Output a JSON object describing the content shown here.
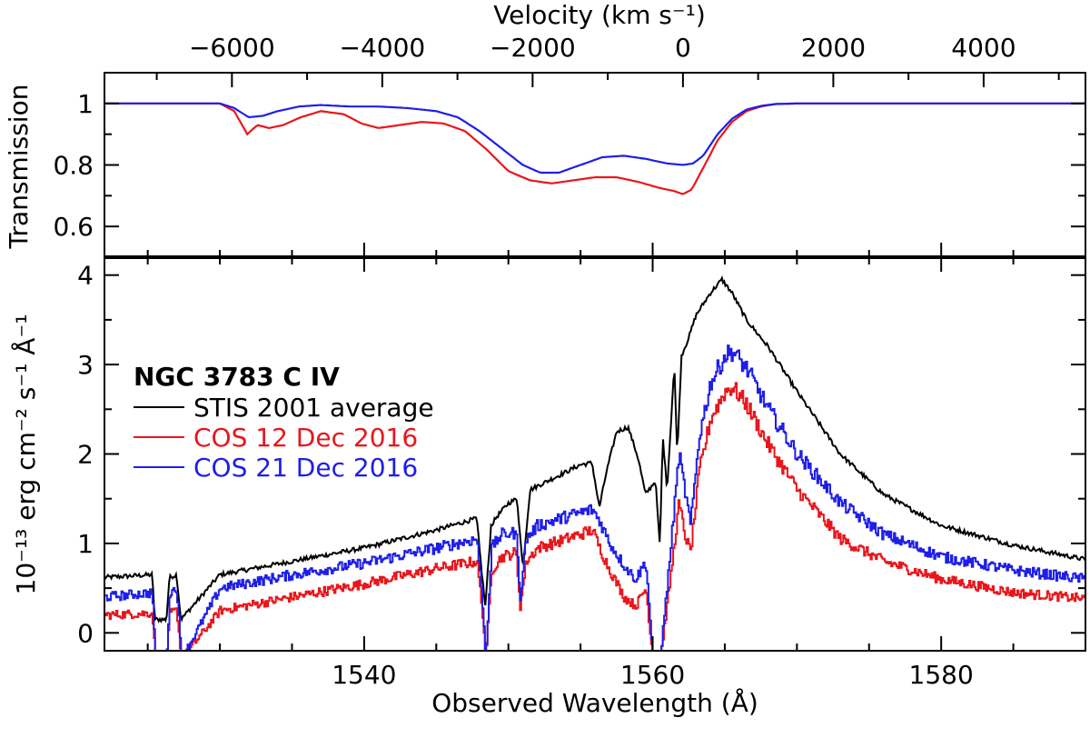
{
  "chart_data": [
    {
      "type": "line",
      "panel": "top",
      "ylabel": "Transmission",
      "top_axis_label": "Velocity (km s⁻¹)",
      "xlim": [
        1522,
        1590
      ],
      "ylim": [
        0.5,
        1.1
      ],
      "y_ticks": [
        0.6,
        0.8,
        1.0
      ],
      "y_tick_labels": [
        "0.6",
        "0.8",
        "1"
      ],
      "top_axis_ticks": [
        -6000,
        -4000,
        -2000,
        0,
        2000,
        4000
      ],
      "top_axis_tick_labels": [
        "−6000",
        "−4000",
        "−2000",
        "0",
        "2000",
        "4000"
      ],
      "velocity_zero_wavelength": 1562.1,
      "series": [
        {
          "name": "COS 12 Dec 2016",
          "color": "#e8161c",
          "x": [
            1522,
            1530,
            1531,
            1531.9,
            1532.6,
            1533.4,
            1534.4,
            1535.6,
            1537,
            1538.6,
            1539.8,
            1541,
            1542.5,
            1544,
            1545.5,
            1547,
            1548.5,
            1550,
            1551.5,
            1553,
            1554.5,
            1556,
            1557.5,
            1559,
            1560.5,
            1561.5,
            1562.1,
            1562.7,
            1563.5,
            1564.5,
            1565.5,
            1566.5,
            1567.5,
            1568.5,
            1570,
            1590
          ],
          "y": [
            1.0,
            1.0,
            0.975,
            0.9,
            0.93,
            0.92,
            0.93,
            0.955,
            0.975,
            0.965,
            0.935,
            0.92,
            0.93,
            0.94,
            0.935,
            0.91,
            0.85,
            0.78,
            0.75,
            0.74,
            0.75,
            0.76,
            0.76,
            0.745,
            0.725,
            0.715,
            0.705,
            0.72,
            0.79,
            0.88,
            0.94,
            0.975,
            0.99,
            0.998,
            1.0,
            1.0
          ]
        },
        {
          "name": "COS 21 Dec 2016",
          "color": "#1e1ee8",
          "x": [
            1522,
            1530,
            1531,
            1532,
            1533,
            1534,
            1535.5,
            1537,
            1539,
            1541,
            1543,
            1545,
            1546.5,
            1548,
            1549.5,
            1551,
            1552.2,
            1553.5,
            1555,
            1556.5,
            1558,
            1559.5,
            1561,
            1562.1,
            1562.8,
            1563.5,
            1564.5,
            1565.5,
            1566.5,
            1567.5,
            1568.5,
            1570,
            1590
          ],
          "y": [
            1.0,
            1.0,
            0.985,
            0.955,
            0.96,
            0.975,
            0.99,
            0.995,
            0.99,
            0.99,
            0.985,
            0.975,
            0.955,
            0.91,
            0.855,
            0.8,
            0.775,
            0.775,
            0.8,
            0.825,
            0.83,
            0.82,
            0.805,
            0.8,
            0.805,
            0.83,
            0.9,
            0.95,
            0.98,
            0.992,
            0.998,
            1.0,
            1.0
          ]
        }
      ]
    },
    {
      "type": "line",
      "panel": "bottom",
      "xlabel": "Observed Wavelength (Å)",
      "ylabel": "10⁻¹³ erg cm⁻² s⁻¹ Å⁻¹",
      "xlim": [
        1522,
        1590
      ],
      "ylim": [
        -0.2,
        4.2
      ],
      "x_ticks": [
        1540,
        1560,
        1580
      ],
      "x_tick_labels": [
        "1540",
        "1560",
        "1580"
      ],
      "y_ticks": [
        0,
        1,
        2,
        3,
        4
      ],
      "y_tick_labels": [
        "0",
        "1",
        "2",
        "3",
        "4"
      ],
      "legend": {
        "title": "NGC 3783 C IV",
        "entries": [
          {
            "label": "STIS 2001 average",
            "color": "#000000"
          },
          {
            "label": "COS 12 Dec 2016",
            "color": "#e8161c"
          },
          {
            "label": "COS 21 Dec 2016",
            "color": "#1e1ee8"
          }
        ]
      },
      "series": [
        {
          "name": "STIS 2001 average",
          "color": "#000000",
          "x": [
            1522,
            1525.3,
            1525.5,
            1526.3,
            1526.5,
            1527,
            1527.3,
            1530,
            1535,
            1540,
            1545,
            1547.8,
            1548.2,
            1548.4,
            1548.8,
            1549.2,
            1550,
            1550.6,
            1551,
            1551.5,
            1553,
            1555,
            1555.8,
            1556.3,
            1556.8,
            1557.5,
            1558.3,
            1559,
            1559.5,
            1560.2,
            1560.5,
            1560.7,
            1561,
            1561.5,
            1561.7,
            1562,
            1562.5,
            1563,
            1564,
            1564.8,
            1565.5,
            1566.5,
            1568,
            1570,
            1573,
            1576,
            1580,
            1585,
            1590
          ],
          "y": [
            0.62,
            0.65,
            0.15,
            0.15,
            0.62,
            0.65,
            0.15,
            0.65,
            0.8,
            0.95,
            1.15,
            1.28,
            0.6,
            0.3,
            1.2,
            1.3,
            1.45,
            1.5,
            0.72,
            1.6,
            1.72,
            1.88,
            1.9,
            1.4,
            1.8,
            2.25,
            2.3,
            1.95,
            1.55,
            1.7,
            0.95,
            2.2,
            1.6,
            3.0,
            2.0,
            3.1,
            3.3,
            3.55,
            3.8,
            3.95,
            3.8,
            3.5,
            3.2,
            2.7,
            2.0,
            1.55,
            1.2,
            0.98,
            0.82
          ]
        },
        {
          "name": "COS 12 Dec 2016",
          "color": "#e8161c",
          "x": [
            1522,
            1525.3,
            1525.5,
            1526.3,
            1526.5,
            1527,
            1527.3,
            1530,
            1535,
            1540,
            1545,
            1547.8,
            1548.2,
            1548.4,
            1548.8,
            1549.5,
            1550.5,
            1550.8,
            1551.2,
            1552,
            1554,
            1555.8,
            1556.3,
            1557,
            1558,
            1558.8,
            1559.5,
            1560,
            1560.5,
            1561.2,
            1561.8,
            1562.2,
            1562.6,
            1563.2,
            1564,
            1565,
            1565.5,
            1566.5,
            1568,
            1570,
            1573,
            1576,
            1580,
            1585,
            1590
          ],
          "y": [
            0.2,
            0.22,
            -0.3,
            -0.3,
            0.22,
            0.25,
            -0.3,
            0.25,
            0.4,
            0.55,
            0.72,
            0.8,
            0.2,
            -0.3,
            0.7,
            0.85,
            0.9,
            0.3,
            0.8,
            0.95,
            1.05,
            1.15,
            0.95,
            0.7,
            0.4,
            0.3,
            0.5,
            -0.3,
            -0.3,
            0.6,
            1.45,
            1.1,
            0.9,
            1.8,
            2.4,
            2.7,
            2.75,
            2.55,
            2.1,
            1.6,
            1.05,
            0.8,
            0.6,
            0.45,
            0.38
          ]
        },
        {
          "name": "COS 21 Dec 2016",
          "color": "#1e1ee8",
          "x": [
            1522,
            1525.3,
            1525.5,
            1526.3,
            1526.5,
            1527,
            1527.3,
            1530,
            1535,
            1540,
            1545,
            1547.8,
            1548.2,
            1548.4,
            1548.8,
            1549.5,
            1550.5,
            1550.8,
            1551.2,
            1552,
            1554,
            1555.8,
            1556.3,
            1557,
            1558,
            1558.8,
            1559.5,
            1560,
            1560.5,
            1561.2,
            1561.8,
            1562.2,
            1562.6,
            1563.2,
            1564,
            1565,
            1565.5,
            1566.5,
            1568,
            1570,
            1573,
            1576,
            1580,
            1585,
            1590
          ],
          "y": [
            0.4,
            0.45,
            -0.3,
            -0.3,
            0.45,
            0.5,
            -0.3,
            0.5,
            0.65,
            0.78,
            0.95,
            1.05,
            0.3,
            -0.3,
            0.95,
            1.1,
            1.12,
            0.4,
            1.05,
            1.2,
            1.3,
            1.38,
            1.25,
            1.0,
            0.75,
            0.6,
            0.8,
            -0.3,
            -0.3,
            0.9,
            2.0,
            1.6,
            1.2,
            2.2,
            2.8,
            3.1,
            3.15,
            2.95,
            2.5,
            2.0,
            1.45,
            1.1,
            0.85,
            0.7,
            0.6
          ]
        }
      ]
    }
  ]
}
